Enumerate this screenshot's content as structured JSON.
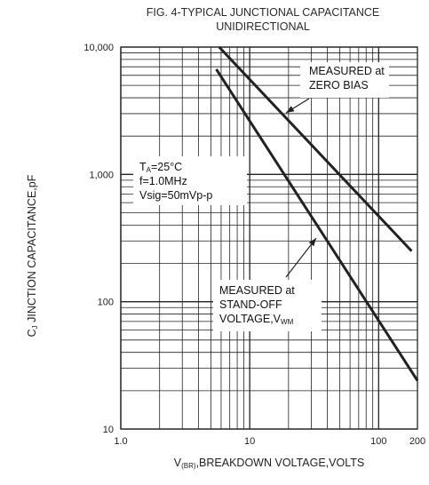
{
  "chart_data": {
    "type": "line",
    "title": "FIG. 4-TYPICAL JUNCTIONAL CAPACITANCE",
    "subtitle": "UNIDIRECTIONAL",
    "xlabel": {
      "prefix": "V",
      "sub": "(BR)",
      "rest": ",BREAKDOWN VOLTAGE,VOLTS"
    },
    "ylabel": {
      "prefix": "C",
      "sub": "J",
      "rest": " JINCTION CAPACITANCE,pF"
    },
    "x_scale": "log",
    "y_scale": "log",
    "xlim": [
      1,
      200
    ],
    "ylim": [
      10,
      10000
    ],
    "x_ticks": [
      {
        "value": 1,
        "label": "1.0"
      },
      {
        "value": 10,
        "label": "10"
      },
      {
        "value": 100,
        "label": "100"
      },
      {
        "value": 200,
        "label": "200"
      }
    ],
    "y_ticks": [
      {
        "value": 10,
        "label": "10"
      },
      {
        "value": 100,
        "label": "100"
      },
      {
        "value": 1000,
        "label": "1,000"
      },
      {
        "value": 10000,
        "label": "10,000"
      }
    ],
    "grid": true,
    "series": [
      {
        "x": [
          5.8,
          180
        ],
        "y": [
          10000,
          250
        ]
      },
      {
        "x": [
          5.5,
          200
        ],
        "y": [
          6700,
          24
        ]
      }
    ],
    "annotations": {
      "conditions": [
        {
          "prefix": "T",
          "sub": "A",
          "rest": "=25°C"
        },
        {
          "prefix": "f=1.0MHz"
        },
        {
          "prefix": "Vsig=50mVp-p"
        }
      ],
      "zero_bias": [
        "MEASURED at",
        "ZERO BIAS"
      ],
      "standoff": [
        {
          "prefix": "MEASURED at"
        },
        {
          "prefix": "STAND-OFF"
        },
        {
          "prefix": "VOLTAGE,V",
          "sub": "WM"
        }
      ]
    },
    "line_color": "#222222",
    "grid_color": "#222222",
    "background": "#ffffff"
  }
}
